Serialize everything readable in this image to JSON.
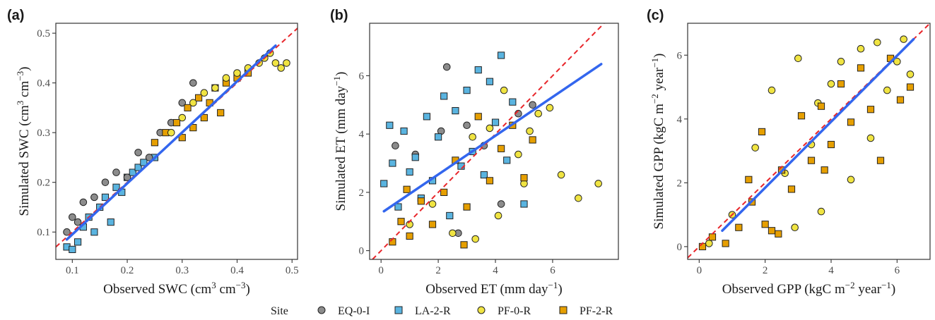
{
  "legend": {
    "title": "Site",
    "entries": [
      {
        "name": "EQ-0-I",
        "color": "#8c8c8c",
        "shape": "circle"
      },
      {
        "name": "LA-2-R",
        "color": "#5ab4e0",
        "shape": "square"
      },
      {
        "name": "PF-0-R",
        "color": "#f0e442",
        "shape": "circle"
      },
      {
        "name": "PF-2-R",
        "color": "#e69f00",
        "shape": "square"
      }
    ]
  },
  "chart_data": [
    {
      "type": "scatter",
      "panel_label": "(a)",
      "xlabel": "Observed SWC (cm",
      "ylabel": "Simulated SWC (cm",
      "xlim": [
        0.07,
        0.51
      ],
      "ylim": [
        0.045,
        0.52
      ],
      "xticks": [
        "0.1",
        "0.2",
        "0.3",
        "0.4",
        "0.5"
      ],
      "yticks": [
        "0.1",
        "0.2",
        "0.3",
        "0.4",
        "0.5"
      ],
      "reference_line": "1:1",
      "fit_line": [
        [
          0.09,
          0.085
        ],
        [
          0.47,
          0.475
        ]
      ],
      "series": [
        {
          "name": "LA-2-R",
          "x": [
            0.09,
            0.1,
            0.11,
            0.12,
            0.13,
            0.14,
            0.15,
            0.16,
            0.17,
            0.18,
            0.19,
            0.2,
            0.21,
            0.22,
            0.23,
            0.25
          ],
          "y": [
            0.07,
            0.065,
            0.08,
            0.11,
            0.13,
            0.1,
            0.15,
            0.17,
            0.12,
            0.19,
            0.18,
            0.21,
            0.22,
            0.23,
            0.24,
            0.25
          ]
        },
        {
          "name": "EQ-0-I",
          "x": [
            0.09,
            0.1,
            0.11,
            0.12,
            0.14,
            0.16,
            0.18,
            0.2,
            0.22,
            0.24,
            0.26,
            0.28,
            0.3,
            0.32
          ],
          "y": [
            0.1,
            0.13,
            0.12,
            0.16,
            0.17,
            0.2,
            0.22,
            0.21,
            0.26,
            0.25,
            0.3,
            0.32,
            0.36,
            0.4
          ]
        },
        {
          "name": "PF-2-R",
          "x": [
            0.25,
            0.27,
            0.29,
            0.3,
            0.31,
            0.32,
            0.33,
            0.34,
            0.35,
            0.36,
            0.37,
            0.38,
            0.4,
            0.42
          ],
          "y": [
            0.28,
            0.3,
            0.32,
            0.29,
            0.35,
            0.31,
            0.37,
            0.33,
            0.36,
            0.39,
            0.34,
            0.4,
            0.41,
            0.42
          ]
        },
        {
          "name": "PF-0-R",
          "x": [
            0.28,
            0.3,
            0.32,
            0.34,
            0.36,
            0.38,
            0.4,
            0.42,
            0.44,
            0.45,
            0.46,
            0.47,
            0.48,
            0.49
          ],
          "y": [
            0.3,
            0.33,
            0.36,
            0.38,
            0.39,
            0.41,
            0.42,
            0.43,
            0.44,
            0.45,
            0.46,
            0.44,
            0.43,
            0.44
          ]
        }
      ]
    },
    {
      "type": "scatter",
      "panel_label": "(b)",
      "xlabel": "Observed ET (mm day",
      "ylabel": "Simulated ET (mm day",
      "xlim": [
        -0.4,
        8.3
      ],
      "ylim": [
        -0.3,
        7.8
      ],
      "xticks": [
        "0",
        "2",
        "4",
        "6"
      ],
      "yticks": [
        "0",
        "2",
        "4",
        "6"
      ],
      "reference_line": "1:1",
      "fit_line": [
        [
          0.1,
          1.35
        ],
        [
          7.7,
          6.4
        ]
      ],
      "series": [
        {
          "name": "EQ-0-I",
          "x": [
            0.5,
            1.2,
            2.1,
            2.7,
            3.0,
            3.6,
            4.2,
            4.8,
            5.3,
            2.3
          ],
          "y": [
            3.6,
            3.3,
            4.1,
            0.6,
            4.3,
            3.6,
            1.6,
            4.7,
            5.0,
            6.3
          ]
        },
        {
          "name": "LA-2-R",
          "x": [
            0.1,
            0.4,
            0.6,
            0.8,
            1.0,
            1.2,
            1.4,
            1.6,
            1.8,
            2.0,
            2.2,
            2.4,
            2.6,
            2.8,
            3.0,
            3.2,
            3.4,
            3.6,
            3.8,
            4.0,
            4.2,
            4.4,
            4.6,
            5.0,
            0.3
          ],
          "y": [
            2.3,
            3.0,
            1.5,
            4.1,
            2.7,
            3.2,
            1.8,
            4.6,
            2.4,
            3.9,
            5.3,
            1.2,
            4.8,
            2.9,
            5.5,
            3.4,
            6.2,
            2.6,
            5.8,
            4.4,
            6.7,
            3.1,
            5.1,
            1.6,
            4.3
          ]
        },
        {
          "name": "PF-0-R",
          "x": [
            1.0,
            1.8,
            2.5,
            3.2,
            3.8,
            4.3,
            4.8,
            5.2,
            5.5,
            5.9,
            6.3,
            6.9,
            7.6,
            5.0,
            4.1,
            3.3
          ],
          "y": [
            0.9,
            1.6,
            0.6,
            3.9,
            4.2,
            5.5,
            3.3,
            4.1,
            4.7,
            4.9,
            2.6,
            1.8,
            2.3,
            2.3,
            1.2,
            0.4
          ]
        },
        {
          "name": "PF-2-R",
          "x": [
            0.4,
            0.7,
            1.0,
            1.4,
            1.8,
            2.2,
            2.6,
            3.0,
            3.4,
            3.8,
            4.2,
            4.6,
            5.0,
            5.3,
            0.9,
            2.9
          ],
          "y": [
            0.3,
            1.0,
            0.5,
            1.7,
            0.9,
            2.0,
            3.1,
            1.5,
            4.6,
            2.4,
            3.5,
            4.3,
            2.5,
            3.8,
            2.1,
            0.2
          ]
        }
      ]
    },
    {
      "type": "scatter",
      "panel_label": "(c)",
      "xlabel": "Observed GPP (kgC m",
      "ylabel": "Simulated GPP (kgC m",
      "xlim": [
        -0.35,
        7.0
      ],
      "ylim": [
        -0.4,
        7.0
      ],
      "xticks": [
        "0",
        "2",
        "4",
        "6"
      ],
      "yticks": [
        "0",
        "2",
        "4",
        "6"
      ],
      "reference_line": "1:1",
      "fit_line": [
        [
          0.7,
          0.5
        ],
        [
          6.5,
          6.5
        ]
      ],
      "series": [
        {
          "name": "PF-0-R",
          "x": [
            0.3,
            1.0,
            1.7,
            2.2,
            2.6,
            3.0,
            3.4,
            3.6,
            3.7,
            4.0,
            4.3,
            4.6,
            4.9,
            5.2,
            5.4,
            5.7,
            6.0,
            6.2,
            6.4,
            2.9
          ],
          "y": [
            0.1,
            1.0,
            3.1,
            4.9,
            2.3,
            5.9,
            3.2,
            4.5,
            1.1,
            5.1,
            5.8,
            2.1,
            6.2,
            3.4,
            6.4,
            4.9,
            5.8,
            6.5,
            5.4,
            0.6
          ]
        },
        {
          "name": "PF-2-R",
          "x": [
            0.1,
            0.4,
            0.8,
            1.2,
            1.6,
            1.9,
            2.2,
            2.5,
            2.8,
            3.1,
            3.4,
            3.7,
            4.0,
            4.3,
            4.6,
            4.9,
            5.2,
            5.5,
            5.8,
            6.1,
            6.4,
            2.0,
            2.4,
            1.5,
            3.8
          ],
          "y": [
            0.0,
            0.3,
            0.1,
            0.6,
            1.4,
            3.6,
            0.5,
            2.4,
            1.8,
            4.1,
            2.7,
            4.4,
            3.2,
            5.1,
            3.9,
            5.6,
            4.3,
            2.7,
            5.9,
            4.6,
            5.0,
            0.7,
            0.4,
            2.1,
            2.4
          ]
        }
      ]
    }
  ]
}
